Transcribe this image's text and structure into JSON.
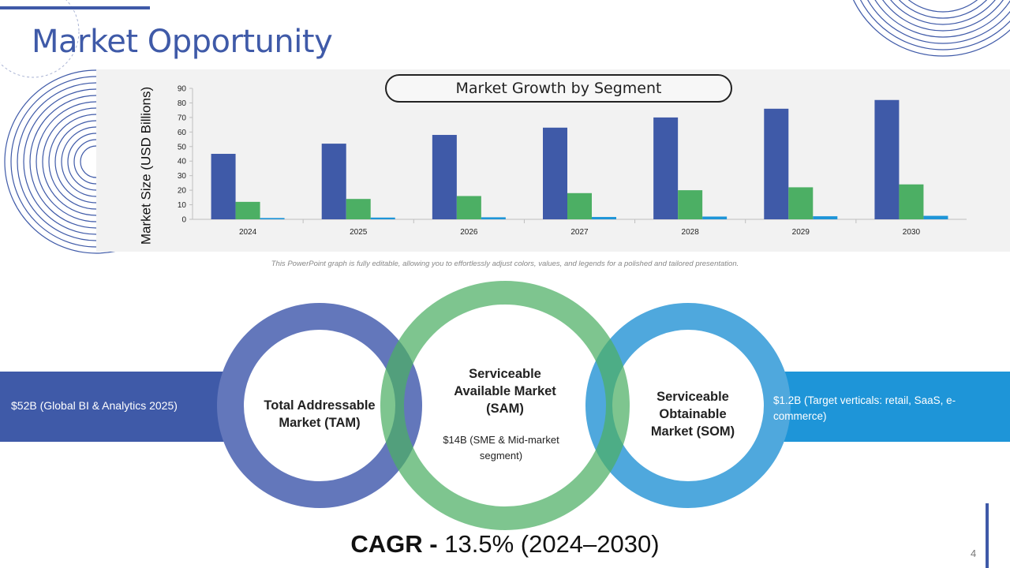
{
  "slide": {
    "title": "Market Opportunity",
    "page_number": "4",
    "footnote": "This PowerPoint graph is fully editable, allowing you to effortlessly adjust colors, values, and legends for a polished and tailored presentation."
  },
  "colors": {
    "primary": "#3f5aa8",
    "green": "#4caf64",
    "blue": "#1e95d8",
    "chart_bg": "#f2f2f2"
  },
  "chart_data": {
    "type": "bar",
    "title": "Market Growth by Segment",
    "xlabel": "",
    "ylabel": "Market Size (USD Billions)",
    "ylim": [
      0,
      90
    ],
    "yticks": [
      0,
      10,
      20,
      30,
      40,
      50,
      60,
      70,
      80,
      90
    ],
    "categories": [
      "2024",
      "2025",
      "2026",
      "2027",
      "2028",
      "2029",
      "2030"
    ],
    "series": [
      {
        "name": "TAM",
        "color": "#3f5aa8",
        "values": [
          45,
          52,
          58,
          63,
          70,
          76,
          82
        ]
      },
      {
        "name": "SAM",
        "color": "#4caf64",
        "values": [
          12,
          14,
          16,
          18,
          20,
          22,
          24
        ]
      },
      {
        "name": "SOM",
        "color": "#1e95d8",
        "values": [
          0.9,
          1.2,
          1.4,
          1.6,
          1.9,
          2.1,
          2.4
        ]
      }
    ]
  },
  "segments": {
    "tam": {
      "label": "Total Addressable Market (TAM)",
      "value": "$52B (Global BI & Analytics 2025)"
    },
    "sam": {
      "label": "Serviceable Available Market (SAM)",
      "value": "$14B (SME & Mid-market segment)"
    },
    "som": {
      "label": "Serviceable Obtainable Market (SOM)",
      "value": "$1.2B (Target verticals: retail, SaaS, e-commerce)"
    }
  },
  "cagr": {
    "label": "CAGR -",
    "value": "13.5% (2024–2030)"
  }
}
